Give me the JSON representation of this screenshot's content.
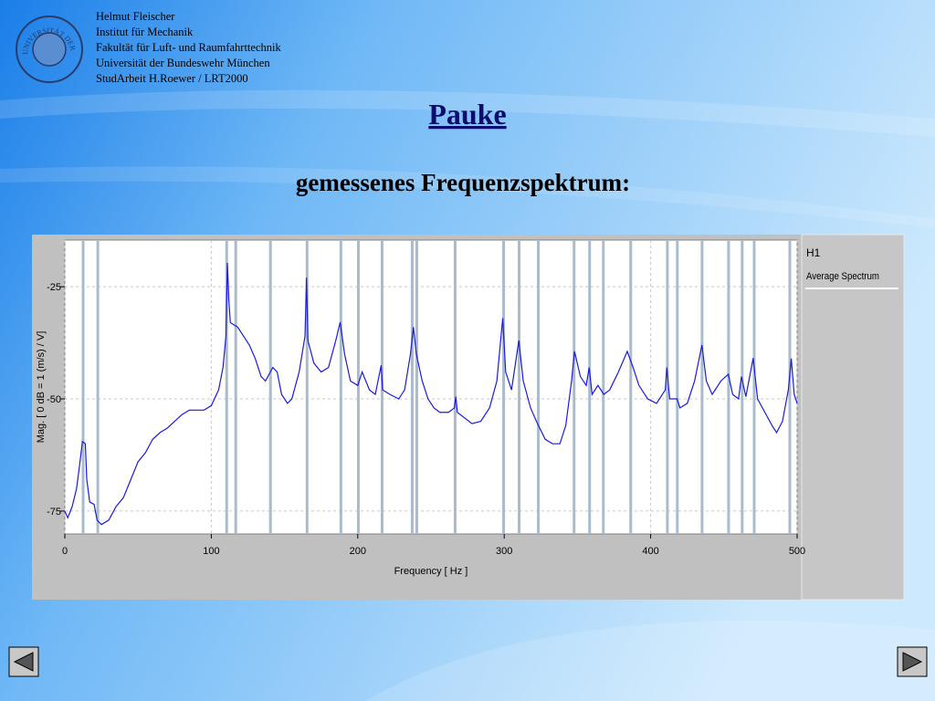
{
  "header": {
    "lines": [
      "Helmut Fleischer",
      "Institut für Mechanik",
      "Fakultät für Luft- und Raumfahrttechnik",
      "Universität der Bundeswehr München",
      "StudArbeit H.Roewer / LRT2000"
    ],
    "logo": "UNIVERSITÄT DER BUNDESWEHR MÜNCHEN"
  },
  "title": "Pauke",
  "subtitle": "gemessenes Frequenzspektrum:",
  "chart_data": {
    "type": "line",
    "x_label": "Frequency [ Hz ]",
    "y_label": "Mag. [ 0 dB = 1 (m/s) / V]",
    "legend_title": "H1",
    "xlim": [
      0,
      500
    ],
    "xticks": [
      0,
      100,
      200,
      300,
      400,
      500
    ],
    "ylim": [
      -80.1,
      -14.6
    ],
    "yticks": [
      -25,
      -50,
      -75
    ],
    "grid": true,
    "markers": {
      "color": "#a9bccd",
      "x": [
        12.5,
        22.5,
        110.5,
        116.7,
        140.4,
        165.4,
        188.5,
        200.4,
        216.6,
        237.2,
        240.3,
        266.5,
        299.6,
        310.2,
        323.3,
        347.7,
        358.3,
        367.7,
        386.4,
        411.4,
        418.2,
        435.1,
        453.2,
        462.5,
        470.7,
        495
      ]
    },
    "series": [
      {
        "name": "Average Spectrum",
        "color": "#1a1ae0",
        "x": [
          0,
          2,
          5,
          8,
          10,
          12,
          14,
          15,
          17,
          20,
          22,
          25,
          30,
          35,
          40,
          45,
          50,
          55,
          60,
          65,
          70,
          75,
          80,
          85,
          90,
          95,
          100,
          105,
          108,
          110,
          111,
          112,
          113,
          118,
          122,
          126,
          130,
          134,
          137,
          142,
          145,
          148,
          152,
          155,
          160,
          164,
          165,
          166,
          170,
          175,
          180,
          185,
          188,
          191,
          195,
          200,
          203,
          208,
          212,
          216,
          217,
          222,
          228,
          232,
          236,
          238,
          240,
          244,
          248,
          252,
          256,
          262,
          266,
          267,
          268,
          272,
          278,
          284,
          290,
          295,
          299,
          301,
          305,
          310,
          313,
          318,
          322,
          328,
          333,
          338,
          342,
          346,
          348,
          352,
          356,
          358,
          360,
          364,
          368,
          372,
          378,
          384,
          388,
          392,
          398,
          404,
          410,
          411,
          413,
          418,
          420,
          425,
          430,
          435,
          438,
          442,
          448,
          453,
          456,
          460,
          462,
          465,
          470,
          473,
          478,
          483,
          486,
          490,
          494,
          496,
          498,
          500
        ],
        "values": [
          -75,
          -76.5,
          -74,
          -70,
          -65,
          -59.5,
          -60,
          -68,
          -73,
          -73.5,
          -77,
          -78,
          -77,
          -74,
          -72,
          -68,
          -64,
          -62,
          -59,
          -57.5,
          -56.5,
          -55,
          -53.5,
          -52.5,
          -52.5,
          -52.5,
          -51.5,
          -48,
          -43,
          -36,
          -19.7,
          -28,
          -33,
          -34,
          -36,
          -38,
          -41,
          -45,
          -46,
          -43,
          -44,
          -49,
          -51,
          -50,
          -44,
          -36,
          -23,
          -37,
          -42,
          -44,
          -43,
          -37,
          -32.9,
          -40,
          -46,
          -47,
          -44,
          -48,
          -49,
          -42.5,
          -48,
          -49,
          -50,
          -48,
          -40,
          -34,
          -40,
          -46,
          -50,
          -52,
          -53,
          -53,
          -52,
          -49.5,
          -53,
          -54,
          -55.5,
          -55,
          -52,
          -46,
          -32,
          -44,
          -48,
          -37,
          -46,
          -52,
          -55,
          -59,
          -60,
          -60,
          -56,
          -46,
          -39.4,
          -45,
          -47,
          -43,
          -49,
          -47,
          -49,
          -48,
          -44,
          -39.4,
          -43,
          -47,
          -50,
          -51,
          -48,
          -43,
          -50,
          -50,
          -52,
          -51,
          -46,
          -38,
          -46,
          -49,
          -46,
          -44.5,
          -49,
          -50,
          -45,
          -49.5,
          -40.9,
          -50,
          -53,
          -56,
          -57.5,
          -55,
          -48,
          -41,
          -49,
          -51
        ]
      }
    ]
  }
}
